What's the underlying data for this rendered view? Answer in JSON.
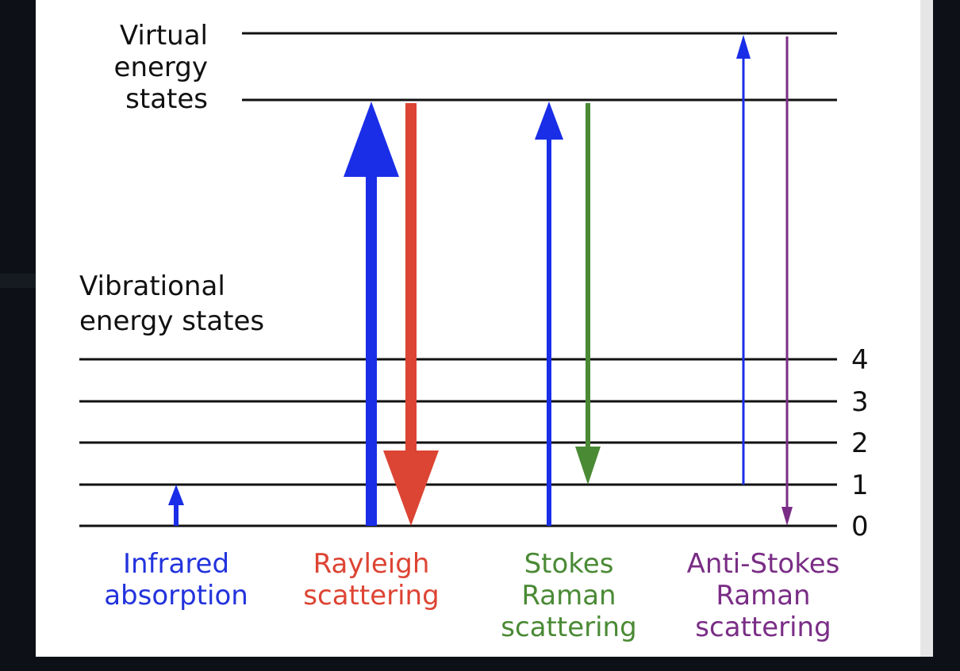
{
  "diagram": {
    "virtual_label": [
      "Virtual",
      "energy",
      "states"
    ],
    "vibrational_label": [
      "Vibrational",
      "energy states"
    ],
    "levels": [
      "0",
      "1",
      "2",
      "3",
      "4"
    ],
    "processes": [
      {
        "label": [
          "Infrared",
          "absorption"
        ]
      },
      {
        "label": [
          "Rayleigh",
          "scattering"
        ]
      },
      {
        "label": [
          "Stokes",
          "Raman",
          "scattering"
        ]
      },
      {
        "label": [
          "Anti-Stokes",
          "Raman",
          "scattering"
        ]
      }
    ]
  }
}
